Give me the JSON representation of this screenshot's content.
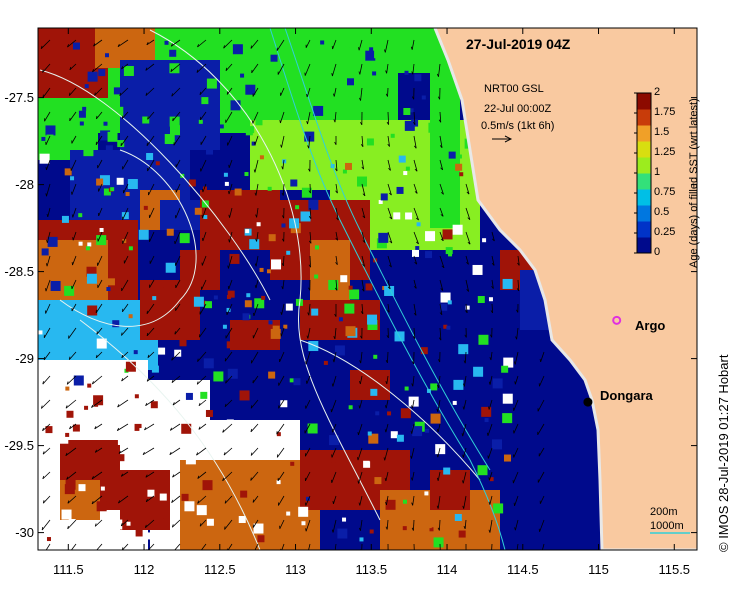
{
  "map": {
    "title": "27-Jul-2019 04Z",
    "wind_title": "NRT00 GSL",
    "wind_time": "22-Jul 00:00Z",
    "wind_scale": "0.5m/s (1kt 6h)",
    "credit": "© IMOS 28-Jul-2019 01:27 Hobart",
    "depth_label_200": "200m",
    "depth_label_1000": "1000m",
    "lon_ticks": [
      "111.5",
      "112",
      "112.5",
      "113",
      "113.5",
      "114",
      "114.5",
      "115",
      "115.5"
    ],
    "lat_ticks": [
      "-27.5",
      "-28",
      "-28.5",
      "-29",
      "-29.5",
      "-30"
    ],
    "lon_range": [
      111.3,
      115.65
    ],
    "lat_range": [
      -30.1,
      -27.1
    ]
  },
  "colorbar": {
    "label": "Age (days) of filled SST (wrt latest)",
    "ticks": [
      "0",
      "0.25",
      "0.5",
      "0.75",
      "1",
      "1.25",
      "1.5",
      "1.75",
      "2"
    ],
    "colors": [
      "#000a8c",
      "#0033c8",
      "#0077e0",
      "#00bfe6",
      "#33e07a",
      "#9cec1e",
      "#d8de10",
      "#f0a028",
      "#c83c0a",
      "#8c0a00"
    ]
  },
  "places": [
    {
      "name": "Dongara",
      "lon": 114.93,
      "lat": -29.25,
      "marker": "black-dot"
    },
    {
      "name": "Argo",
      "lon": 115.12,
      "lat": -28.78,
      "marker": "magenta-circle"
    }
  ],
  "colors": {
    "land": "#f9c9a0",
    "deep_blue": "#000a8c",
    "blue": "#0a1ea8",
    "green": "#22e022",
    "light_green": "#88ee22",
    "red": "#a01408",
    "orange": "#cc6610",
    "cyan": "#28b8f0",
    "contour": "#e8f4f0",
    "coast_contour": "#30d0d8",
    "argo": "#e030e0"
  }
}
